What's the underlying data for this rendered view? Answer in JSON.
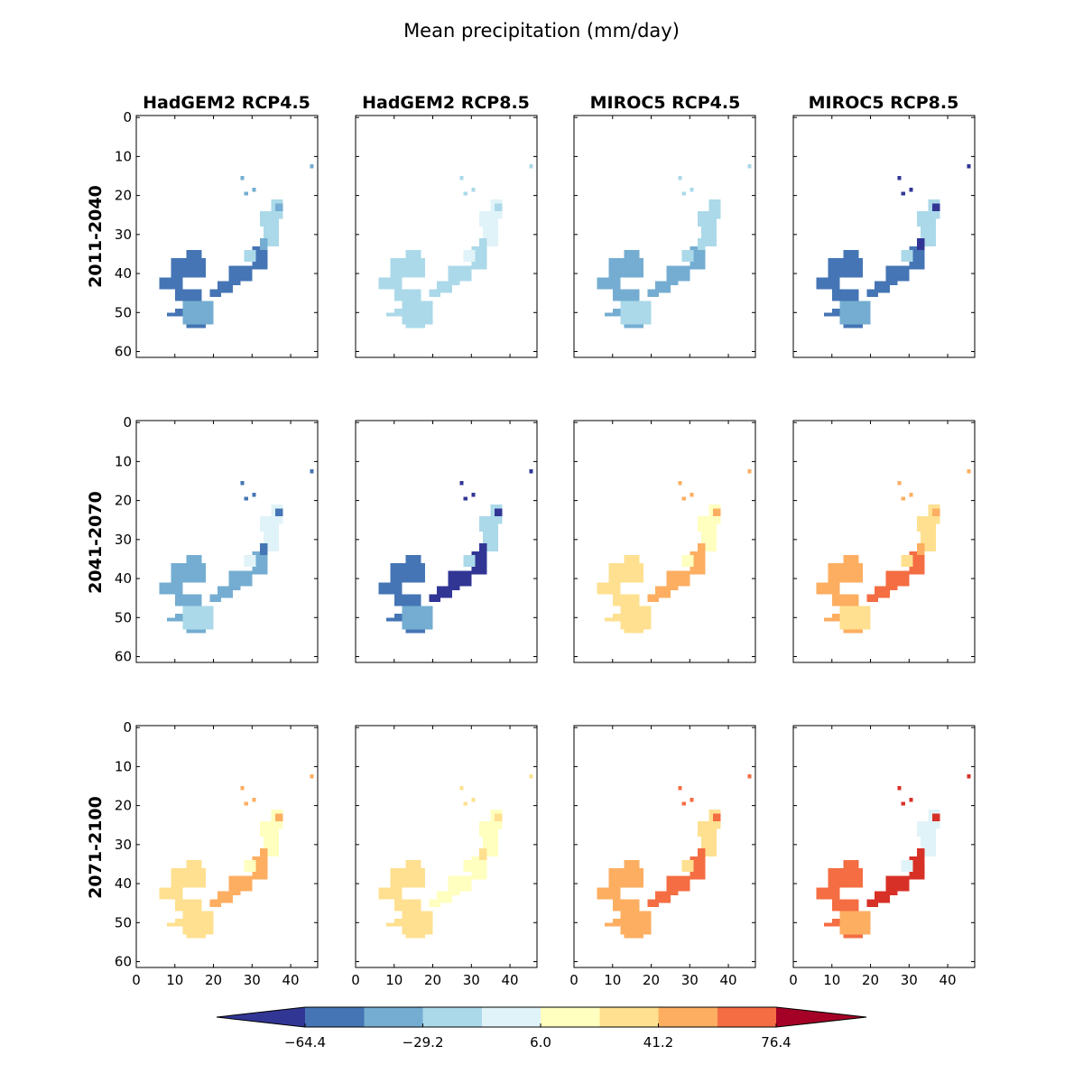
{
  "chart_data": {
    "type": "heatmap",
    "title": "Mean precipitation (mm/day)",
    "columns": [
      "HadGEM2 RCP4.5",
      "HadGEM2 RCP8.5",
      "MIROC5 RCP4.5",
      "MIROC5 RCP8.5"
    ],
    "rows": [
      "2011-2040",
      "2041-2070",
      "2071-2100"
    ],
    "x_ticks": [
      "0",
      "10",
      "20",
      "30",
      "40"
    ],
    "y_ticks": [
      "0",
      "10",
      "20",
      "30",
      "40",
      "50",
      "60"
    ],
    "xlim": [
      0,
      47
    ],
    "ylim": [
      61.5,
      -0.5
    ],
    "colorbar": {
      "extend": "both",
      "ticks": [
        "−64.4",
        "−29.2",
        "6.0",
        "41.2",
        "76.4"
      ],
      "tick_values": [
        -64.4,
        -29.2,
        6.0,
        41.2,
        76.4
      ],
      "levels": [
        -82,
        -64.4,
        -46.8,
        -29.2,
        -11.6,
        6.0,
        23.6,
        41.2,
        58.8,
        76.4,
        94
      ],
      "colors": [
        "#313695",
        "#4575b4",
        "#74add1",
        "#abd9e9",
        "#e0f3f8",
        "#ffffbf",
        "#fee090",
        "#fdae61",
        "#f46d43",
        "#d73027",
        "#a50026"
      ]
    },
    "panel_level_indices": [
      [
        [
          1,
          2,
          1,
          3,
          2
        ],
        [
          3,
          3,
          3,
          4,
          3
        ],
        [
          2,
          3,
          2,
          3,
          3
        ],
        [
          1,
          2,
          1,
          3,
          0
        ]
      ],
      [
        [
          2,
          3,
          2,
          4,
          1
        ],
        [
          1,
          2,
          0,
          3,
          0
        ],
        [
          6,
          6,
          7,
          5,
          7
        ],
        [
          7,
          6,
          8,
          6,
          7
        ]
      ],
      [
        [
          6,
          6,
          7,
          5,
          7
        ],
        [
          6,
          6,
          5,
          5,
          6
        ],
        [
          7,
          7,
          8,
          6,
          8
        ],
        [
          8,
          7,
          9,
          4,
          9
        ]
      ]
    ]
  }
}
